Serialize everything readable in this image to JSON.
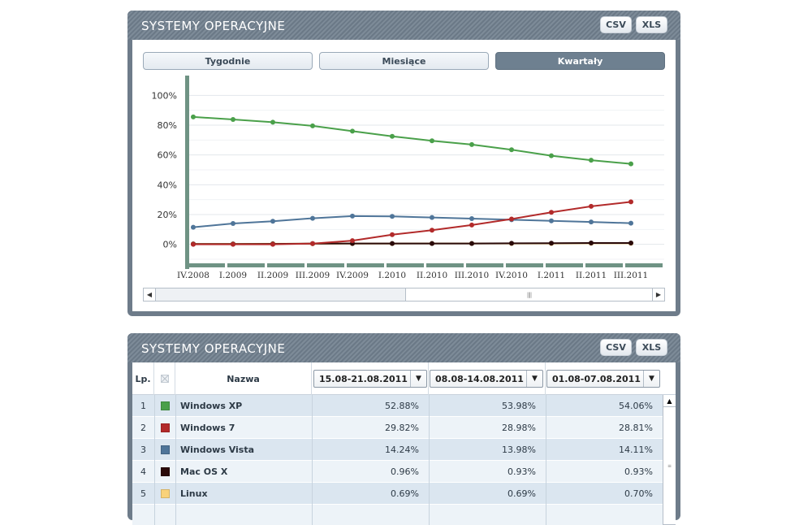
{
  "chart_panel": {
    "title": "SYSTEMY OPERACYJNE",
    "csv_label": "CSV",
    "xls_label": "XLS",
    "tabs": [
      {
        "label": "Tygodnie",
        "active": false
      },
      {
        "label": "Miesiące",
        "active": false
      },
      {
        "label": "Kwartały",
        "active": true
      }
    ]
  },
  "chart_data": {
    "type": "line",
    "x": [
      "IV.2008",
      "I.2009",
      "II.2009",
      "III.2009",
      "IV.2009",
      "I.2010",
      "II.2010",
      "III.2010",
      "IV.2010",
      "I.2011",
      "II.2011",
      "III.2011"
    ],
    "yticks": [
      "100%",
      "80%",
      "60%",
      "40%",
      "20%",
      "0%"
    ],
    "ylim": [
      -10,
      110
    ],
    "grid": true,
    "series": [
      {
        "color": "#4aa04a",
        "values": [
          85.5,
          83.8,
          82,
          79.5,
          76,
          72.5,
          69.5,
          67,
          63.5,
          59.5,
          56.5,
          54
        ]
      },
      {
        "color": "#b22a2a",
        "values": [
          0,
          0,
          0,
          0.5,
          2.5,
          6.5,
          9.5,
          13,
          17,
          21.5,
          25.5,
          28.5
        ]
      },
      {
        "color": "#4f7599",
        "values": [
          11.5,
          14,
          15.5,
          17.5,
          19,
          18.8,
          18,
          17.3,
          16.5,
          15.8,
          15,
          14.2
        ]
      },
      {
        "color": "#2a0a0a",
        "values": [
          0.2,
          0.2,
          0.3,
          0.5,
          0.6,
          0.6,
          0.6,
          0.6,
          0.7,
          0.8,
          0.9,
          0.9
        ]
      },
      {
        "color": "#f2c96b",
        "values": [
          0.3,
          0.3,
          0.4,
          0.4,
          0.5,
          0.5,
          0.6,
          0.6,
          0.6,
          0.6,
          0.7,
          0.7
        ]
      }
    ]
  },
  "table_panel": {
    "title": "SYSTEMY OPERACYJNE",
    "csv_label": "CSV",
    "xls_label": "XLS",
    "headers": {
      "lp": "Lp.",
      "name": "Nazwa",
      "date1": "15.08-21.08.2011",
      "date2": "08.08-14.08.2011",
      "date3": "01.08-07.08.2011"
    },
    "rows": [
      {
        "lp": "1",
        "color": "#4aa04a",
        "name": "Windows XP",
        "v1": "52.88%",
        "v2": "53.98%",
        "v3": "54.06%"
      },
      {
        "lp": "2",
        "color": "#b22a2a",
        "name": "Windows 7",
        "v1": "29.82%",
        "v2": "28.98%",
        "v3": "28.81%"
      },
      {
        "lp": "3",
        "color": "#4f7599",
        "name": "Windows Vista",
        "v1": "14.24%",
        "v2": "13.98%",
        "v3": "14.11%"
      },
      {
        "lp": "4",
        "color": "#2a0a0a",
        "name": "Mac OS X",
        "v1": "0.96%",
        "v2": "0.93%",
        "v3": "0.93%"
      },
      {
        "lp": "5",
        "color": "#f9d27a",
        "name": "Linux",
        "v1": "0.69%",
        "v2": "0.69%",
        "v3": "0.70%"
      },
      {
        "lp": "",
        "color": "",
        "name": "",
        "v1": "",
        "v2": "",
        "v3": ""
      }
    ]
  }
}
